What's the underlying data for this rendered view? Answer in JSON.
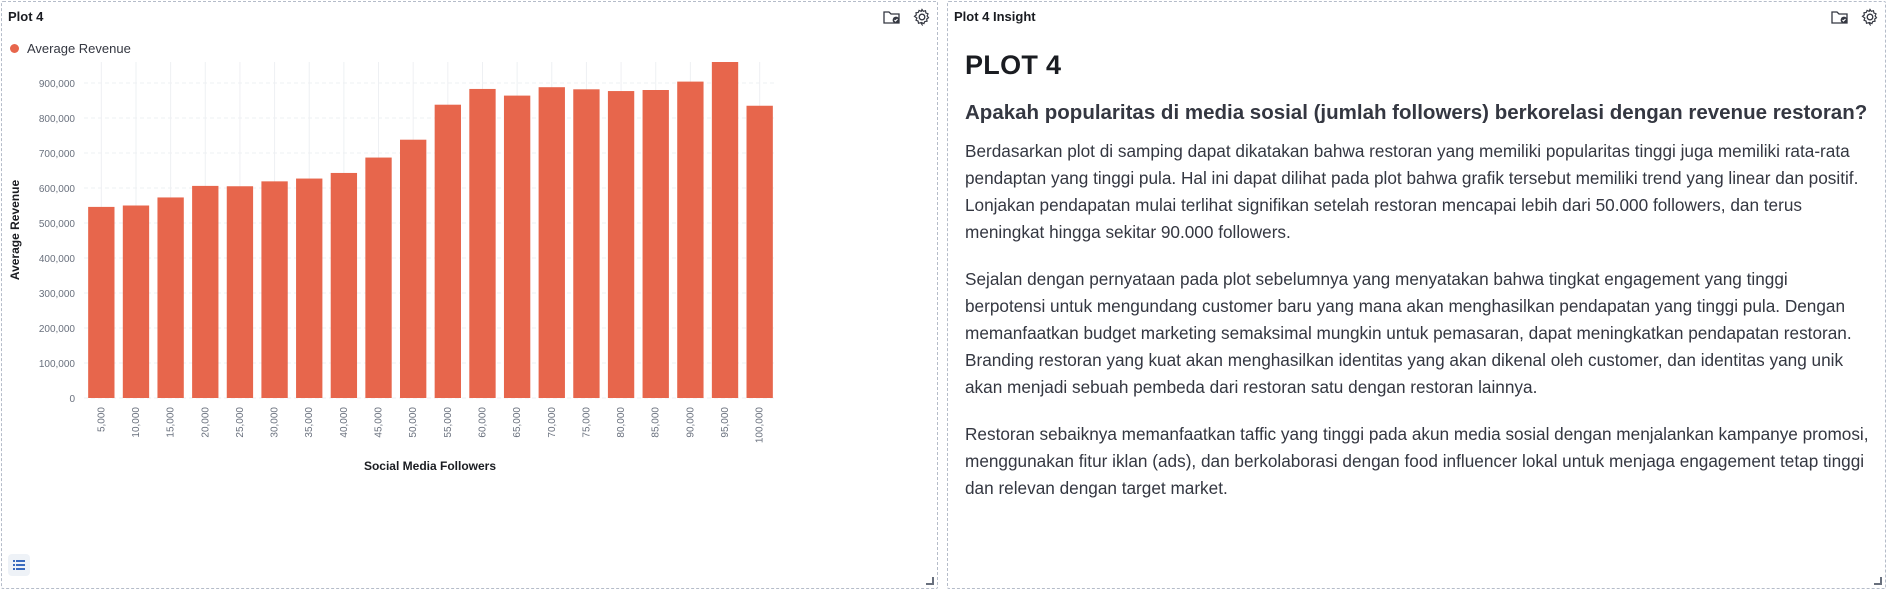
{
  "left_panel": {
    "title": "Plot 4",
    "legend_label": "Average Revenue"
  },
  "right_panel": {
    "title": "Plot 4 Insight",
    "heading": "PLOT 4",
    "question": "Apakah popularitas di media sosial (jumlah followers) berkorelasi dengan revenue restoran?",
    "paragraphs": [
      "Berdasarkan plot di samping dapat dikatakan bahwa restoran yang memiliki popularitas tinggi juga memiliki rata-rata pendaptan yang tinggi pula. Hal ini dapat dilihat pada plot bahwa grafik tersebut memiliki trend yang linear dan positif. Lonjakan pendapatan mulai terlihat signifikan setelah restoran mencapai lebih dari 50.000 followers, dan terus meningkat hingga sekitar 90.000 followers.",
      "Sejalan dengan pernyataan pada plot sebelumnya yang menyatakan bahwa tingkat engagement yang tinggi berpotensi untuk mengundang customer baru yang mana akan menghasilkan pendapatan yang tinggi pula. Dengan memanfaatkan budget marketing semaksimal mungkin untuk pemasaran, dapat meningkatkan pendapatan restoran. Branding restoran yang kuat akan menghasilkan identitas yang akan dikenal oleh customer, dan identitas yang unik akan menjadi sebuah pembeda dari restoran satu dengan restoran lainnya.",
      "Restoran sebaiknya memanfaatkan taffic yang tinggi pada akun media sosial dengan menjalankan kampanye promosi, menggunakan fitur iklan (ads), dan berkolaborasi dengan food influencer lokal untuk menjaga engagement tetap tinggi dan relevan dengan target market."
    ]
  },
  "icons": {
    "folder_check": "folder-check-icon",
    "gear": "gear-icon",
    "list": "list-icon"
  },
  "colors": {
    "bar": "#e7664c",
    "grid": "#eef0f3",
    "axis_text": "#69707d"
  },
  "chart_data": {
    "type": "bar",
    "xlabel": "Social Media Followers",
    "ylabel": "Average Revenue",
    "categories": [
      "5,000",
      "10,000",
      "15,000",
      "20,000",
      "25,000",
      "30,000",
      "35,000",
      "40,000",
      "45,000",
      "50,000",
      "55,000",
      "60,000",
      "65,000",
      "70,000",
      "75,000",
      "80,000",
      "85,000",
      "90,000",
      "95,000",
      "100,000"
    ],
    "series": [
      {
        "name": "Average Revenue",
        "values": [
          546000,
          550000,
          573000,
          606000,
          605000,
          619000,
          627000,
          643000,
          687000,
          738000,
          838000,
          883000,
          864000,
          888000,
          882000,
          877000,
          880000,
          904000,
          960000,
          835000
        ]
      }
    ],
    "yticks": [
      "0",
      "100,000",
      "200,000",
      "300,000",
      "400,000",
      "500,000",
      "600,000",
      "700,000",
      "800,000",
      "900,000"
    ],
    "ylim": [
      0,
      960000
    ],
    "grid": true,
    "legend_position": "top-left"
  }
}
